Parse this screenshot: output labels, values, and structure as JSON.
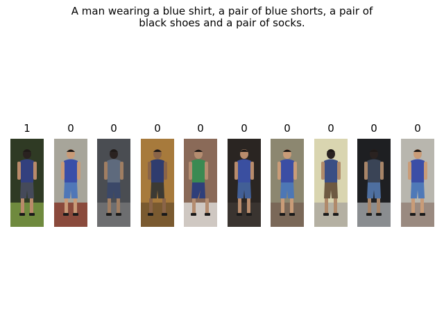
{
  "caption": {
    "line1": "A man wearing a blue shirt, a pair of blue shorts, a pair of",
    "line2": "black shoes and a pair of socks."
  },
  "gallery": [
    {
      "label": "1",
      "bg": "#2f3a24",
      "floor": "#6f8a3e",
      "shirt": "#33407e",
      "pants": "#454a5a",
      "skin": "#b98a6a",
      "pose": "back"
    },
    {
      "label": "0",
      "bg": "#a7a59a",
      "floor": "#8a4a3c",
      "shirt": "#3a4ea8",
      "pants": "#4f77b8",
      "skin": "#c99b78",
      "pose": "front"
    },
    {
      "label": "0",
      "bg": "#4a4d52",
      "floor": "#6d6e70",
      "shirt": "#5e6a7d",
      "pants": "#3b4868",
      "skin": "#a07e62",
      "pose": "back"
    },
    {
      "label": "0",
      "bg": "#a77a3c",
      "floor": "#7a5a30",
      "shirt": "#2f3c6e",
      "pants": "#3c3a34",
      "skin": "#8a6448",
      "pose": "walk"
    },
    {
      "label": "0",
      "bg": "#8a6a58",
      "floor": "#cfc8c2",
      "shirt": "#3a8a52",
      "pants": "#2f3f7a",
      "skin": "#b58d70",
      "pose": "lean"
    },
    {
      "label": "0",
      "bg": "#2a2522",
      "floor": "#3a3430",
      "shirt": "#3a4fa0",
      "pants": "#425f96",
      "skin": "#b98c6c",
      "pose": "front"
    },
    {
      "label": "0",
      "bg": "#8c8770",
      "floor": "#7a6858",
      "shirt": "#3b4ea4",
      "pants": "#4d77b5",
      "skin": "#c99c78",
      "pose": "front"
    },
    {
      "label": "0",
      "bg": "#d9d5b0",
      "floor": "#b4b0a2",
      "shirt": "#3a4e84",
      "pants": "#6e5a42",
      "skin": "#b08a6a",
      "pose": "back"
    },
    {
      "label": "0",
      "bg": "#1e1f22",
      "floor": "#8a8d90",
      "shirt": "#3a4456",
      "pants": "#4e6fa0",
      "skin": "#a88568",
      "pose": "back"
    },
    {
      "label": "0",
      "bg": "#b8b6ae",
      "floor": "#9a8a80",
      "shirt": "#3b4ea6",
      "pants": "#4f79b8",
      "skin": "#c99c78",
      "pose": "front"
    }
  ]
}
